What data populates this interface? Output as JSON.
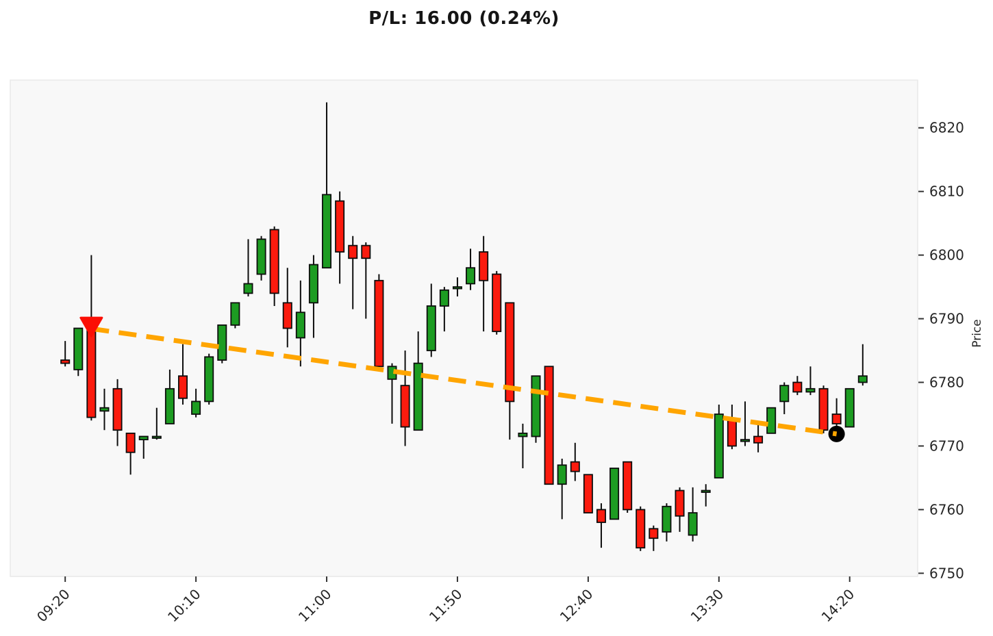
{
  "title": "P/L: 16.00 (0.24%)",
  "chart_data": {
    "type": "candlestick",
    "interval": "5min",
    "title": "P/L: 16.00 (0.24%)",
    "x_axis": {
      "tick_labels": [
        "09:20",
        "10:10",
        "11:00",
        "11:50",
        "12:40",
        "13:30",
        "14:20"
      ],
      "tick_indices": [
        0,
        10,
        20,
        30,
        40,
        50,
        60
      ],
      "range_index": [
        -4.2,
        65.2
      ],
      "rotation_deg": 45
    },
    "y_axis": {
      "label": "Price",
      "side": "right",
      "ticks": [
        6750,
        6760,
        6770,
        6780,
        6790,
        6800,
        6810,
        6820
      ],
      "range": [
        6749.5,
        6827.5
      ],
      "grid": false
    },
    "columns": [
      "time",
      "open",
      "high",
      "low",
      "close"
    ],
    "candles": [
      [
        "09:20",
        6783.5,
        6786.5,
        6782.5,
        6783.0
      ],
      [
        "09:25",
        6782.0,
        6788.5,
        6781.0,
        6788.5
      ],
      [
        "09:30",
        6790.0,
        6800.0,
        6774.0,
        6774.5
      ],
      [
        "09:35",
        6775.5,
        6779.0,
        6772.5,
        6776.0
      ],
      [
        "09:40",
        6779.0,
        6780.5,
        6770.0,
        6772.5
      ],
      [
        "09:45",
        6772.0,
        6772.0,
        6765.5,
        6769.0
      ],
      [
        "09:50",
        6771.0,
        6771.5,
        6768.0,
        6771.5
      ],
      [
        "09:55",
        6771.5,
        6776.0,
        6771.0,
        6771.5
      ],
      [
        "10:00",
        6773.5,
        6782.0,
        6773.5,
        6779.0
      ],
      [
        "10:05",
        6781.0,
        6786.0,
        6776.5,
        6777.5
      ],
      [
        "10:10",
        6775.0,
        6779.0,
        6774.5,
        6777.0
      ],
      [
        "10:15",
        6777.0,
        6784.5,
        6776.5,
        6784.0
      ],
      [
        "10:20",
        6783.5,
        6789.0,
        6783.0,
        6789.0
      ],
      [
        "10:25",
        6789.0,
        6792.5,
        6788.5,
        6792.5
      ],
      [
        "10:30",
        6794.0,
        6802.5,
        6793.5,
        6795.5
      ],
      [
        "10:35",
        6797.0,
        6803.0,
        6796.0,
        6802.5
      ],
      [
        "10:40",
        6804.0,
        6804.5,
        6792.0,
        6794.0
      ],
      [
        "10:45",
        6792.5,
        6798.0,
        6785.5,
        6788.5
      ],
      [
        "10:50",
        6787.0,
        6796.0,
        6782.5,
        6791.0
      ],
      [
        "10:55",
        6792.5,
        6800.0,
        6787.0,
        6798.5
      ],
      [
        "11:00",
        6798.0,
        6824.0,
        6798.0,
        6809.5
      ],
      [
        "11:05",
        6808.5,
        6810.0,
        6795.5,
        6800.5
      ],
      [
        "11:10",
        6801.5,
        6803.0,
        6791.5,
        6799.5
      ],
      [
        "11:15",
        6801.5,
        6802.0,
        6790.0,
        6799.5
      ],
      [
        "11:20",
        6796.0,
        6797.0,
        6782.5,
        6782.5
      ],
      [
        "11:25",
        6780.5,
        6783.0,
        6773.5,
        6782.5
      ],
      [
        "11:30",
        6779.5,
        6785.0,
        6770.0,
        6773.0
      ],
      [
        "11:35",
        6772.5,
        6788.0,
        6772.5,
        6783.0
      ],
      [
        "11:40",
        6785.0,
        6795.5,
        6784.0,
        6792.0
      ],
      [
        "11:45",
        6792.0,
        6795.0,
        6788.0,
        6794.5
      ],
      [
        "11:50",
        6795.0,
        6796.5,
        6793.5,
        6795.0
      ],
      [
        "11:55",
        6795.5,
        6801.0,
        6794.5,
        6798.0
      ],
      [
        "12:00",
        6800.5,
        6803.0,
        6788.0,
        6796.0
      ],
      [
        "12:05",
        6797.0,
        6797.5,
        6787.5,
        6788.0
      ],
      [
        "12:10",
        6792.5,
        6792.5,
        6771.0,
        6777.0
      ],
      [
        "12:15",
        6771.5,
        6773.5,
        6766.5,
        6772.0
      ],
      [
        "12:20",
        6771.5,
        6781.0,
        6770.5,
        6781.0
      ],
      [
        "12:25",
        6782.5,
        6782.5,
        6764.0,
        6764.0
      ],
      [
        "12:30",
        6764.0,
        6768.0,
        6758.5,
        6767.0
      ],
      [
        "12:35",
        6767.5,
        6770.5,
        6764.5,
        6766.0
      ],
      [
        "12:40",
        6765.5,
        6765.5,
        6759.5,
        6759.5
      ],
      [
        "12:45",
        6760.0,
        6761.0,
        6754.0,
        6758.0
      ],
      [
        "12:50",
        6758.5,
        6766.5,
        6758.5,
        6766.5
      ],
      [
        "12:55",
        6767.5,
        6767.5,
        6759.5,
        6760.0
      ],
      [
        "13:00",
        6760.0,
        6760.5,
        6753.5,
        6754.0
      ],
      [
        "13:05",
        6757.0,
        6757.5,
        6753.5,
        6755.5
      ],
      [
        "13:10",
        6756.5,
        6761.0,
        6755.0,
        6760.5
      ],
      [
        "13:15",
        6763.0,
        6763.5,
        6756.5,
        6759.0
      ],
      [
        "13:20",
        6756.0,
        6763.5,
        6755.0,
        6759.5
      ],
      [
        "13:25",
        6763.0,
        6764.0,
        6760.5,
        6763.0
      ],
      [
        "13:30",
        6765.0,
        6776.5,
        6765.0,
        6775.0
      ],
      [
        "13:35",
        6774.0,
        6776.5,
        6769.5,
        6770.0
      ],
      [
        "13:40",
        6771.0,
        6777.0,
        6770.0,
        6771.0
      ],
      [
        "13:45",
        6771.5,
        6773.5,
        6769.0,
        6770.5
      ],
      [
        "13:50",
        6772.0,
        6776.0,
        6772.0,
        6776.0
      ],
      [
        "13:55",
        6777.0,
        6780.0,
        6775.0,
        6779.5
      ],
      [
        "14:00",
        6780.0,
        6781.0,
        6778.0,
        6778.5
      ],
      [
        "14:05",
        6778.5,
        6782.5,
        6778.0,
        6779.0
      ],
      [
        "14:10",
        6779.0,
        6779.5,
        6772.0,
        6772.5
      ],
      [
        "14:15",
        6775.0,
        6777.5,
        6772.0,
        6773.5
      ],
      [
        "14:20",
        6773.0,
        6779.0,
        6773.0,
        6779.0
      ],
      [
        "14:25",
        6780.0,
        6786.0,
        6779.5,
        6781.0
      ]
    ],
    "trade": {
      "side": "sell",
      "entry": {
        "index": 2,
        "time": "09:30",
        "price": 6788.0
      },
      "current": {
        "index": 59,
        "time": "14:15",
        "price": 6772.0
      },
      "pl_points": "16.00",
      "pl_percent": "0.24%",
      "line_style": "dashed"
    },
    "colors": {
      "up": "#1d9c22",
      "down": "#fb1b0e",
      "wick": "#0d0d0d",
      "body_edge": "#0d0d0d",
      "trade_line": "#ffa500",
      "entry_marker": "#fb0f05",
      "current_dot": "#000000",
      "plot_bg": "#f8f8f8",
      "plot_edge": "#e9e9e9",
      "tick_text": "#262626",
      "tick_mark": "#333333"
    }
  }
}
